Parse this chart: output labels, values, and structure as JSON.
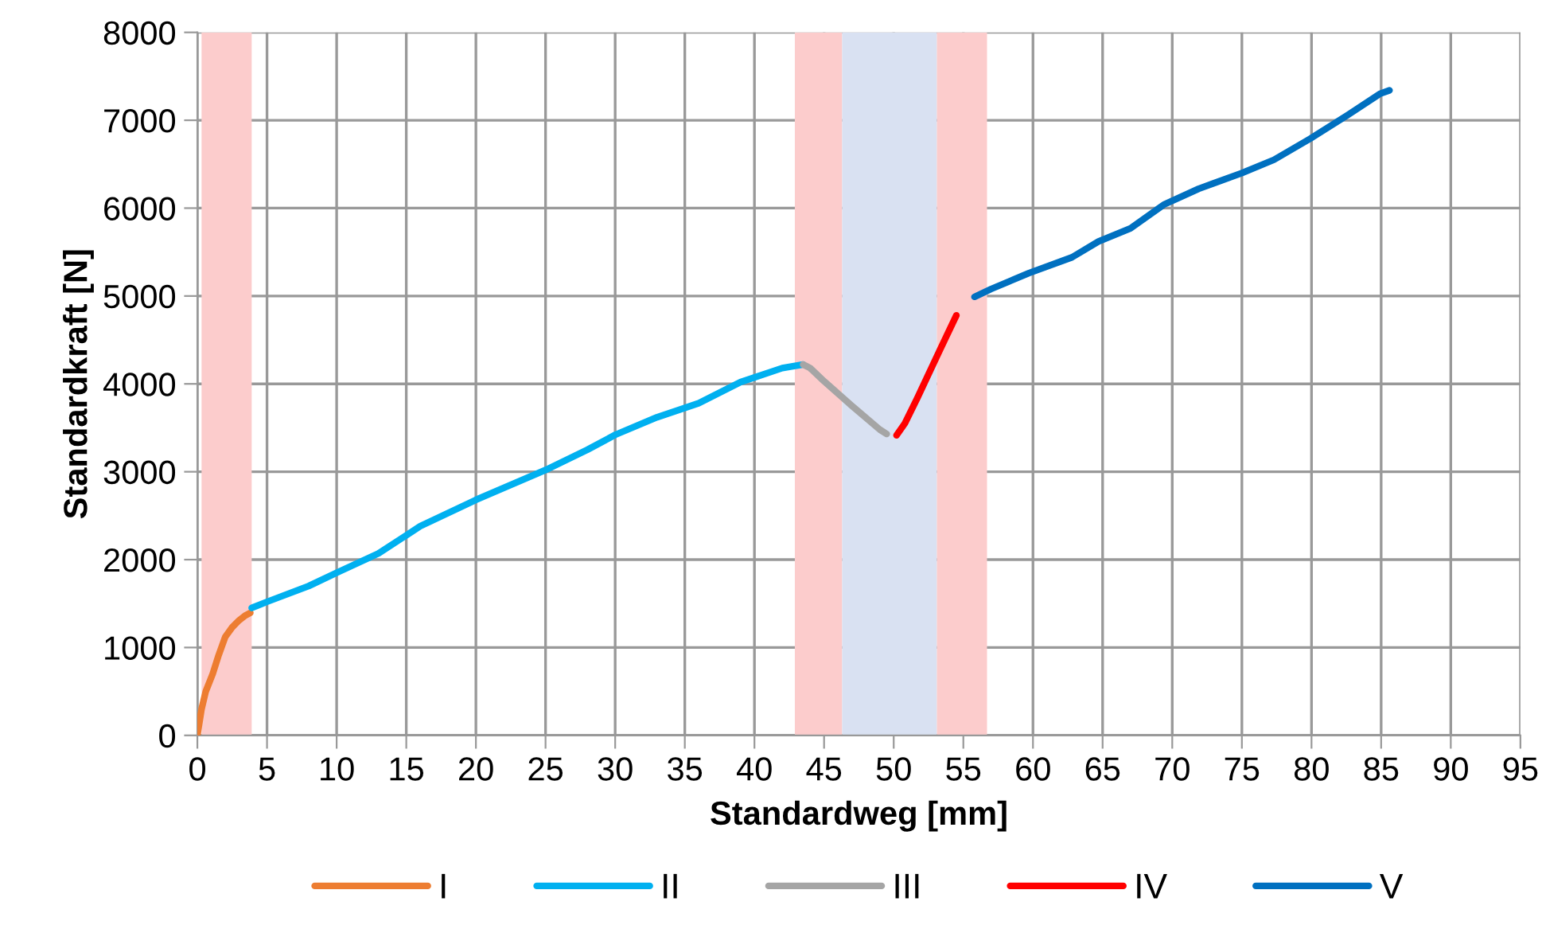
{
  "chart_data": {
    "type": "line",
    "xlabel": "Standardweg [mm]",
    "ylabel": "Standardkraft [N]",
    "xlim": [
      0,
      95
    ],
    "xticks": [
      0,
      5,
      10,
      15,
      20,
      25,
      30,
      35,
      40,
      45,
      50,
      55,
      60,
      65,
      70,
      75,
      80,
      85,
      90,
      95
    ],
    "ylim": [
      0,
      8000
    ],
    "yticks": [
      0,
      1000,
      2000,
      3000,
      4000,
      5000,
      6000,
      7000,
      8000
    ],
    "grid": true,
    "legend": "bottom",
    "marker": "none",
    "line_style": "solid",
    "bands": [
      {
        "axis": "x",
        "from": 0.3,
        "to": 3.9,
        "color": "#fccccc"
      },
      {
        "axis": "x",
        "from": 42.9,
        "to": 46.3,
        "color": "#fccccc"
      },
      {
        "axis": "x",
        "from": 46.3,
        "to": 53.1,
        "color": "#d9e1f2"
      },
      {
        "axis": "x",
        "from": 53.1,
        "to": 56.7,
        "color": "#fccccc"
      }
    ],
    "series": [
      {
        "name": "I",
        "color": "#ed7d31",
        "x": [
          0,
          0.3,
          0.6,
          1.1,
          1.5,
          2.0,
          2.5,
          3.0,
          3.4,
          3.8
        ],
        "values": [
          0,
          300,
          500,
          700,
          900,
          1120,
          1230,
          1310,
          1360,
          1395
        ]
      },
      {
        "name": "II",
        "color": "#00b0f0",
        "x": [
          3.9,
          5,
          8,
          10,
          13,
          16,
          20,
          25,
          28,
          30,
          33,
          36,
          39,
          42,
          43.5
        ],
        "values": [
          1450,
          1520,
          1700,
          1850,
          2070,
          2380,
          2680,
          3020,
          3250,
          3420,
          3620,
          3780,
          4020,
          4180,
          4220
        ]
      },
      {
        "name": "III",
        "color": "#a5a5a5",
        "x": [
          43.5,
          44,
          45,
          47,
          49,
          49.5
        ],
        "values": [
          4220,
          4180,
          4030,
          3750,
          3480,
          3430
        ]
      },
      {
        "name": "IV",
        "color": "#ff0000",
        "x": [
          50.2,
          50.8,
          51.7,
          53.3,
          54.5
        ],
        "values": [
          3415,
          3550,
          3840,
          4380,
          4780
        ]
      },
      {
        "name": "V",
        "color": "#0070c0",
        "x": [
          55.8,
          57,
          59.7,
          62.8,
          64.7,
          67,
          69.4,
          71.9,
          75,
          77.3,
          79.9,
          82.6,
          84.9,
          85.6
        ],
        "values": [
          4990,
          5080,
          5260,
          5440,
          5620,
          5770,
          6040,
          6220,
          6400,
          6550,
          6790,
          7060,
          7300,
          7340
        ]
      }
    ]
  }
}
